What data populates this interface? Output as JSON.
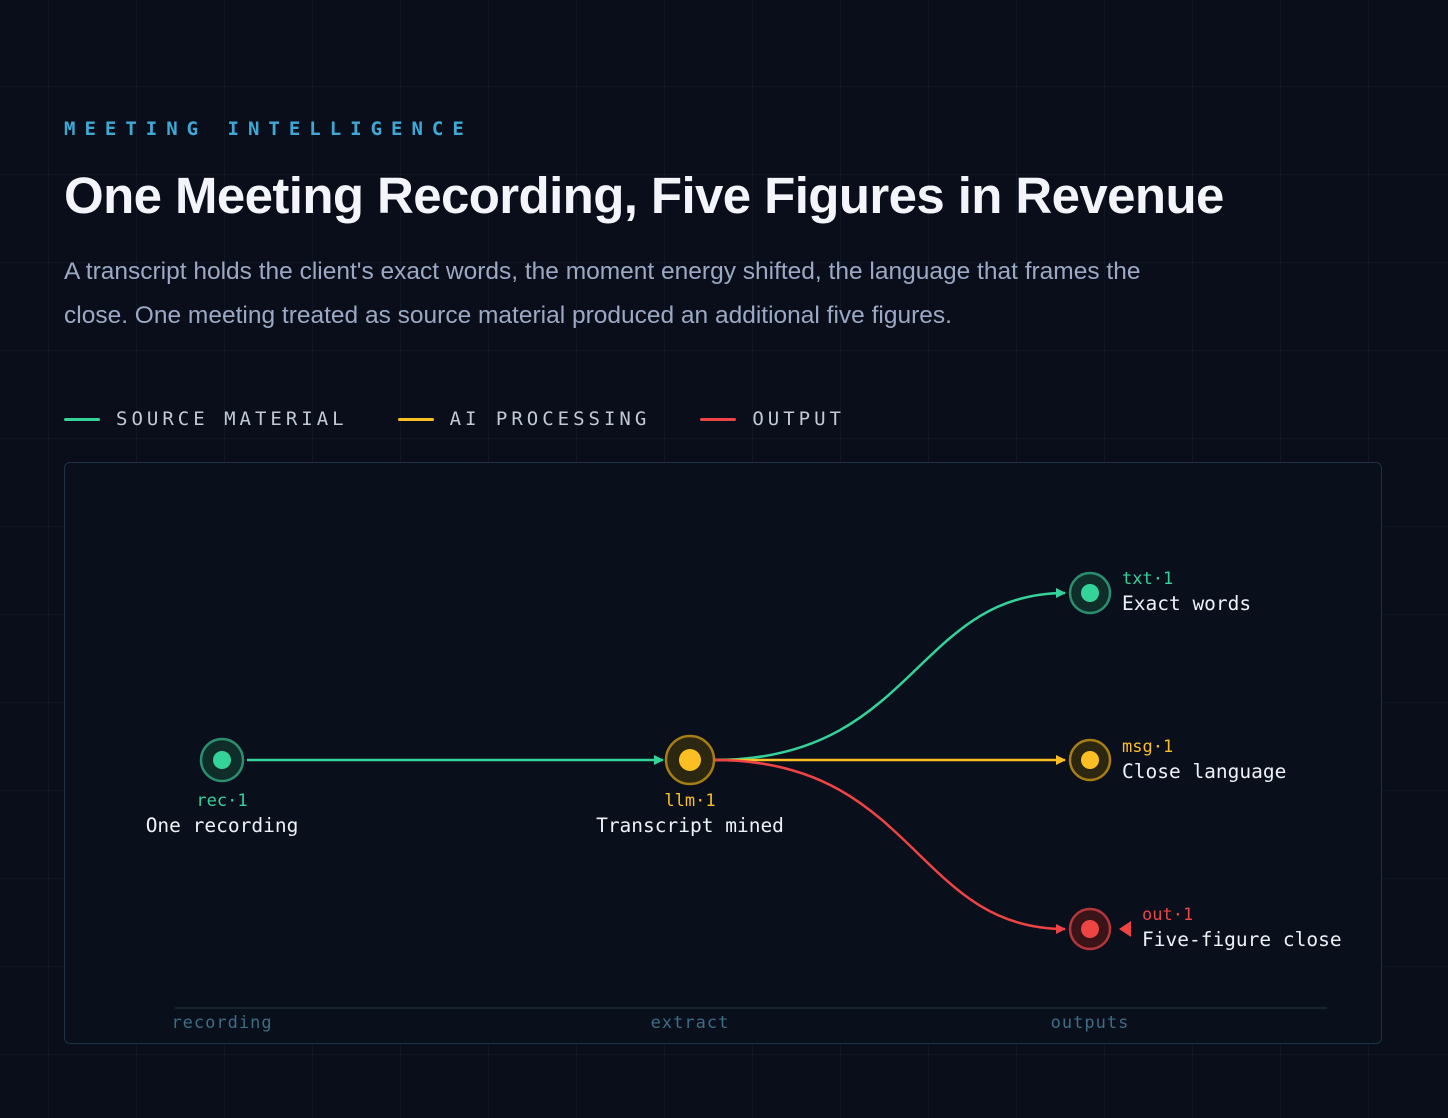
{
  "header": {
    "eyebrow": "MEETING INTELLIGENCE",
    "title": "One Meeting Recording, Five Figures in Revenue",
    "lede": "A transcript holds the client's exact words, the moment energy shifted, the language that frames the close. One meeting treated as source material produced an additional five figures."
  },
  "legend": [
    {
      "label": "SOURCE MATERIAL",
      "color": "#34d399"
    },
    {
      "label": "AI PROCESSING",
      "color": "#fbbf24"
    },
    {
      "label": "OUTPUT",
      "color": "#ef4444"
    }
  ],
  "diagram": {
    "nodes": {
      "rec": {
        "id": "rec·1",
        "label": "One recording",
        "color": "#34d399"
      },
      "llm": {
        "id": "llm·1",
        "label": "Transcript mined",
        "color": "#fbbf24"
      },
      "txt": {
        "id": "txt·1",
        "label": "Exact words",
        "color": "#34d399"
      },
      "msg": {
        "id": "msg·1",
        "label": "Close language",
        "color": "#fbbf24"
      },
      "out": {
        "id": "out·1",
        "label": "Five-figure close",
        "color": "#ef4444"
      }
    },
    "edges": [
      {
        "from": "rec",
        "to": "llm",
        "color": "#34d399"
      },
      {
        "from": "llm",
        "to": "txt",
        "color": "#34d399"
      },
      {
        "from": "llm",
        "to": "msg",
        "color": "#fbbf24"
      },
      {
        "from": "llm",
        "to": "out",
        "color": "#ef4444"
      }
    ],
    "stages": [
      "recording",
      "extract",
      "outputs"
    ]
  }
}
